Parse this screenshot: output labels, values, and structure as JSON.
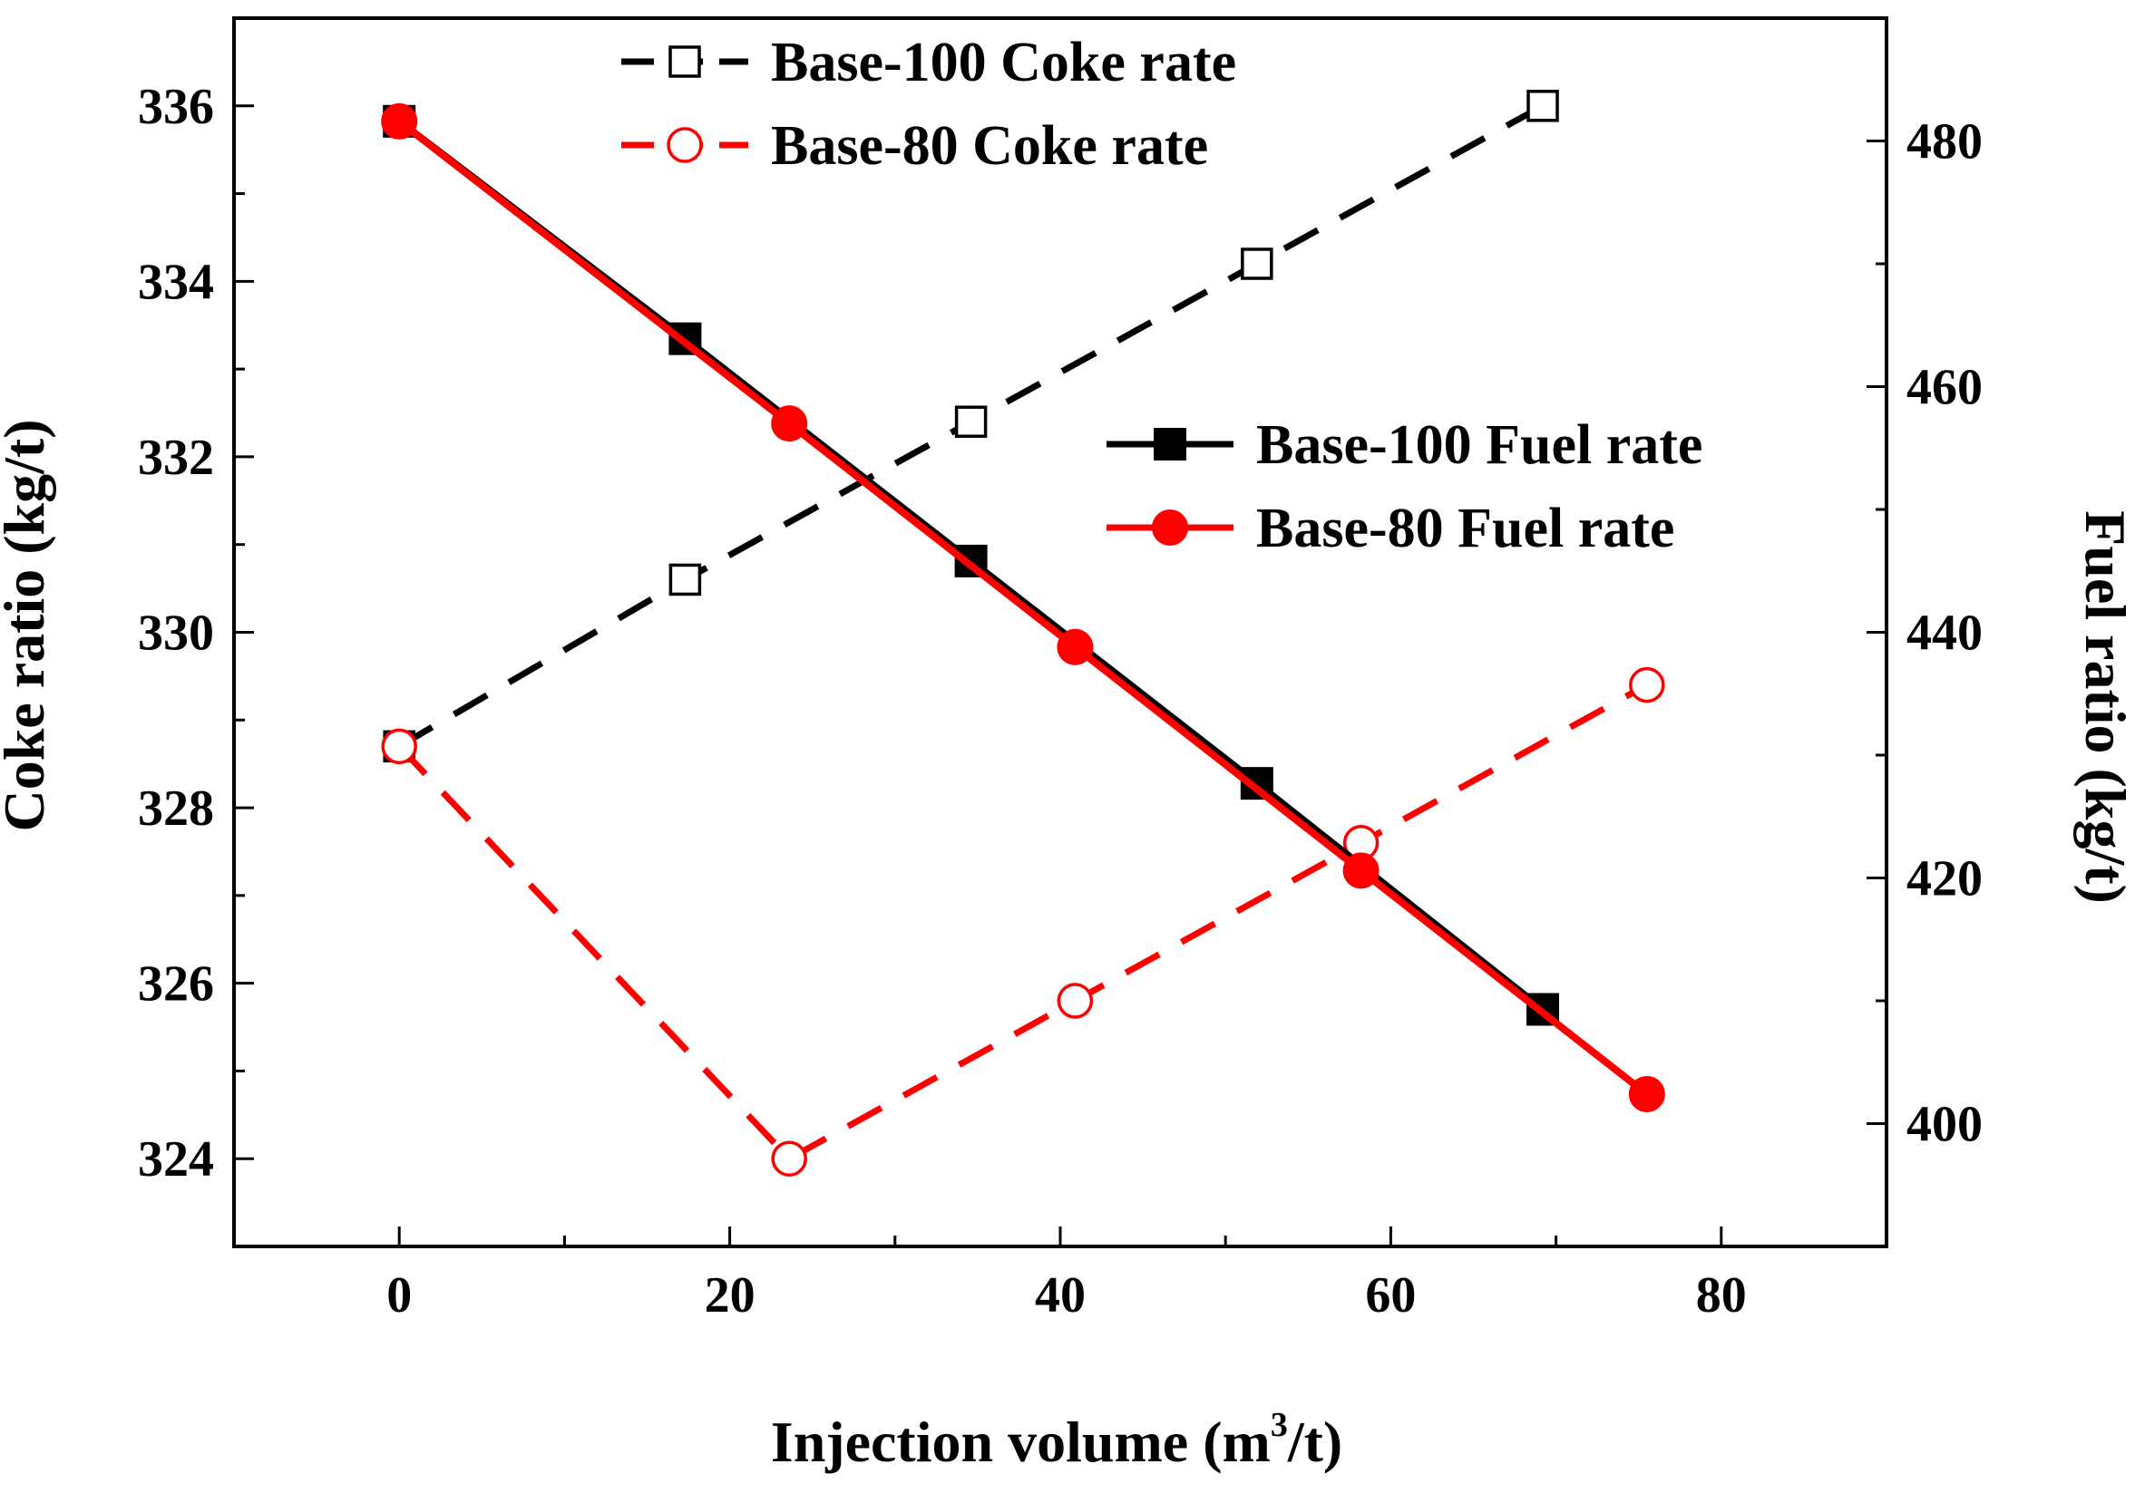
{
  "chart_data": {
    "type": "line",
    "xlabel": {
      "prefix": "Injection volume (m",
      "sup": "3",
      "suffix": "/t)"
    },
    "ylabel_left": "Coke ratio (kg/t)",
    "ylabel_right": "Fuel ratio (kg/t)",
    "xlim": [
      -10,
      90
    ],
    "ylim_left": [
      323,
      337
    ],
    "ylim_right": [
      390,
      490
    ],
    "x_ticks": [
      "0",
      "20",
      "40",
      "60",
      "80"
    ],
    "y_ticks_left": [
      "324",
      "326",
      "328",
      "330",
      "332",
      "334",
      "336"
    ],
    "y_ticks_right": [
      "400",
      "420",
      "440",
      "460",
      "480"
    ],
    "grid": false,
    "series": [
      {
        "name": "Base-100 Coke rate",
        "axis": "left",
        "color": "#000000",
        "line": "dashed",
        "marker": "open-square",
        "x": [
          0,
          17.3,
          34.6,
          51.9,
          69.2
        ],
        "y": [
          328.7,
          330.6,
          332.4,
          334.2,
          336.0
        ]
      },
      {
        "name": "Base-80 Coke rate",
        "axis": "left",
        "color": "#ff0000",
        "line": "dashed",
        "marker": "open-circle",
        "x": [
          0,
          23.6,
          40.9,
          58.2,
          75.5
        ],
        "y": [
          328.7,
          324.0,
          325.8,
          327.6,
          329.4
        ]
      },
      {
        "name": "Base-100 Fuel rate",
        "axis": "right",
        "color": "#000000",
        "line": "solid",
        "marker": "filled-square",
        "x": [
          0,
          17.3,
          34.6,
          51.9,
          69.2
        ],
        "y": [
          481.6,
          463.9,
          445.8,
          427.7,
          409.3
        ]
      },
      {
        "name": "Base-80 Fuel rate",
        "axis": "right",
        "color": "#ff0000",
        "line": "solid",
        "marker": "filled-circle",
        "x": [
          0,
          23.6,
          40.9,
          58.2,
          75.5
        ],
        "y": [
          481.6,
          457.0,
          438.8,
          420.6,
          402.4
        ]
      }
    ],
    "legend_top": [
      "Base-100 Coke rate",
      "Base-80 Coke rate"
    ],
    "legend_mid": [
      "Base-100 Fuel rate",
      "Base-80 Fuel rate"
    ]
  }
}
